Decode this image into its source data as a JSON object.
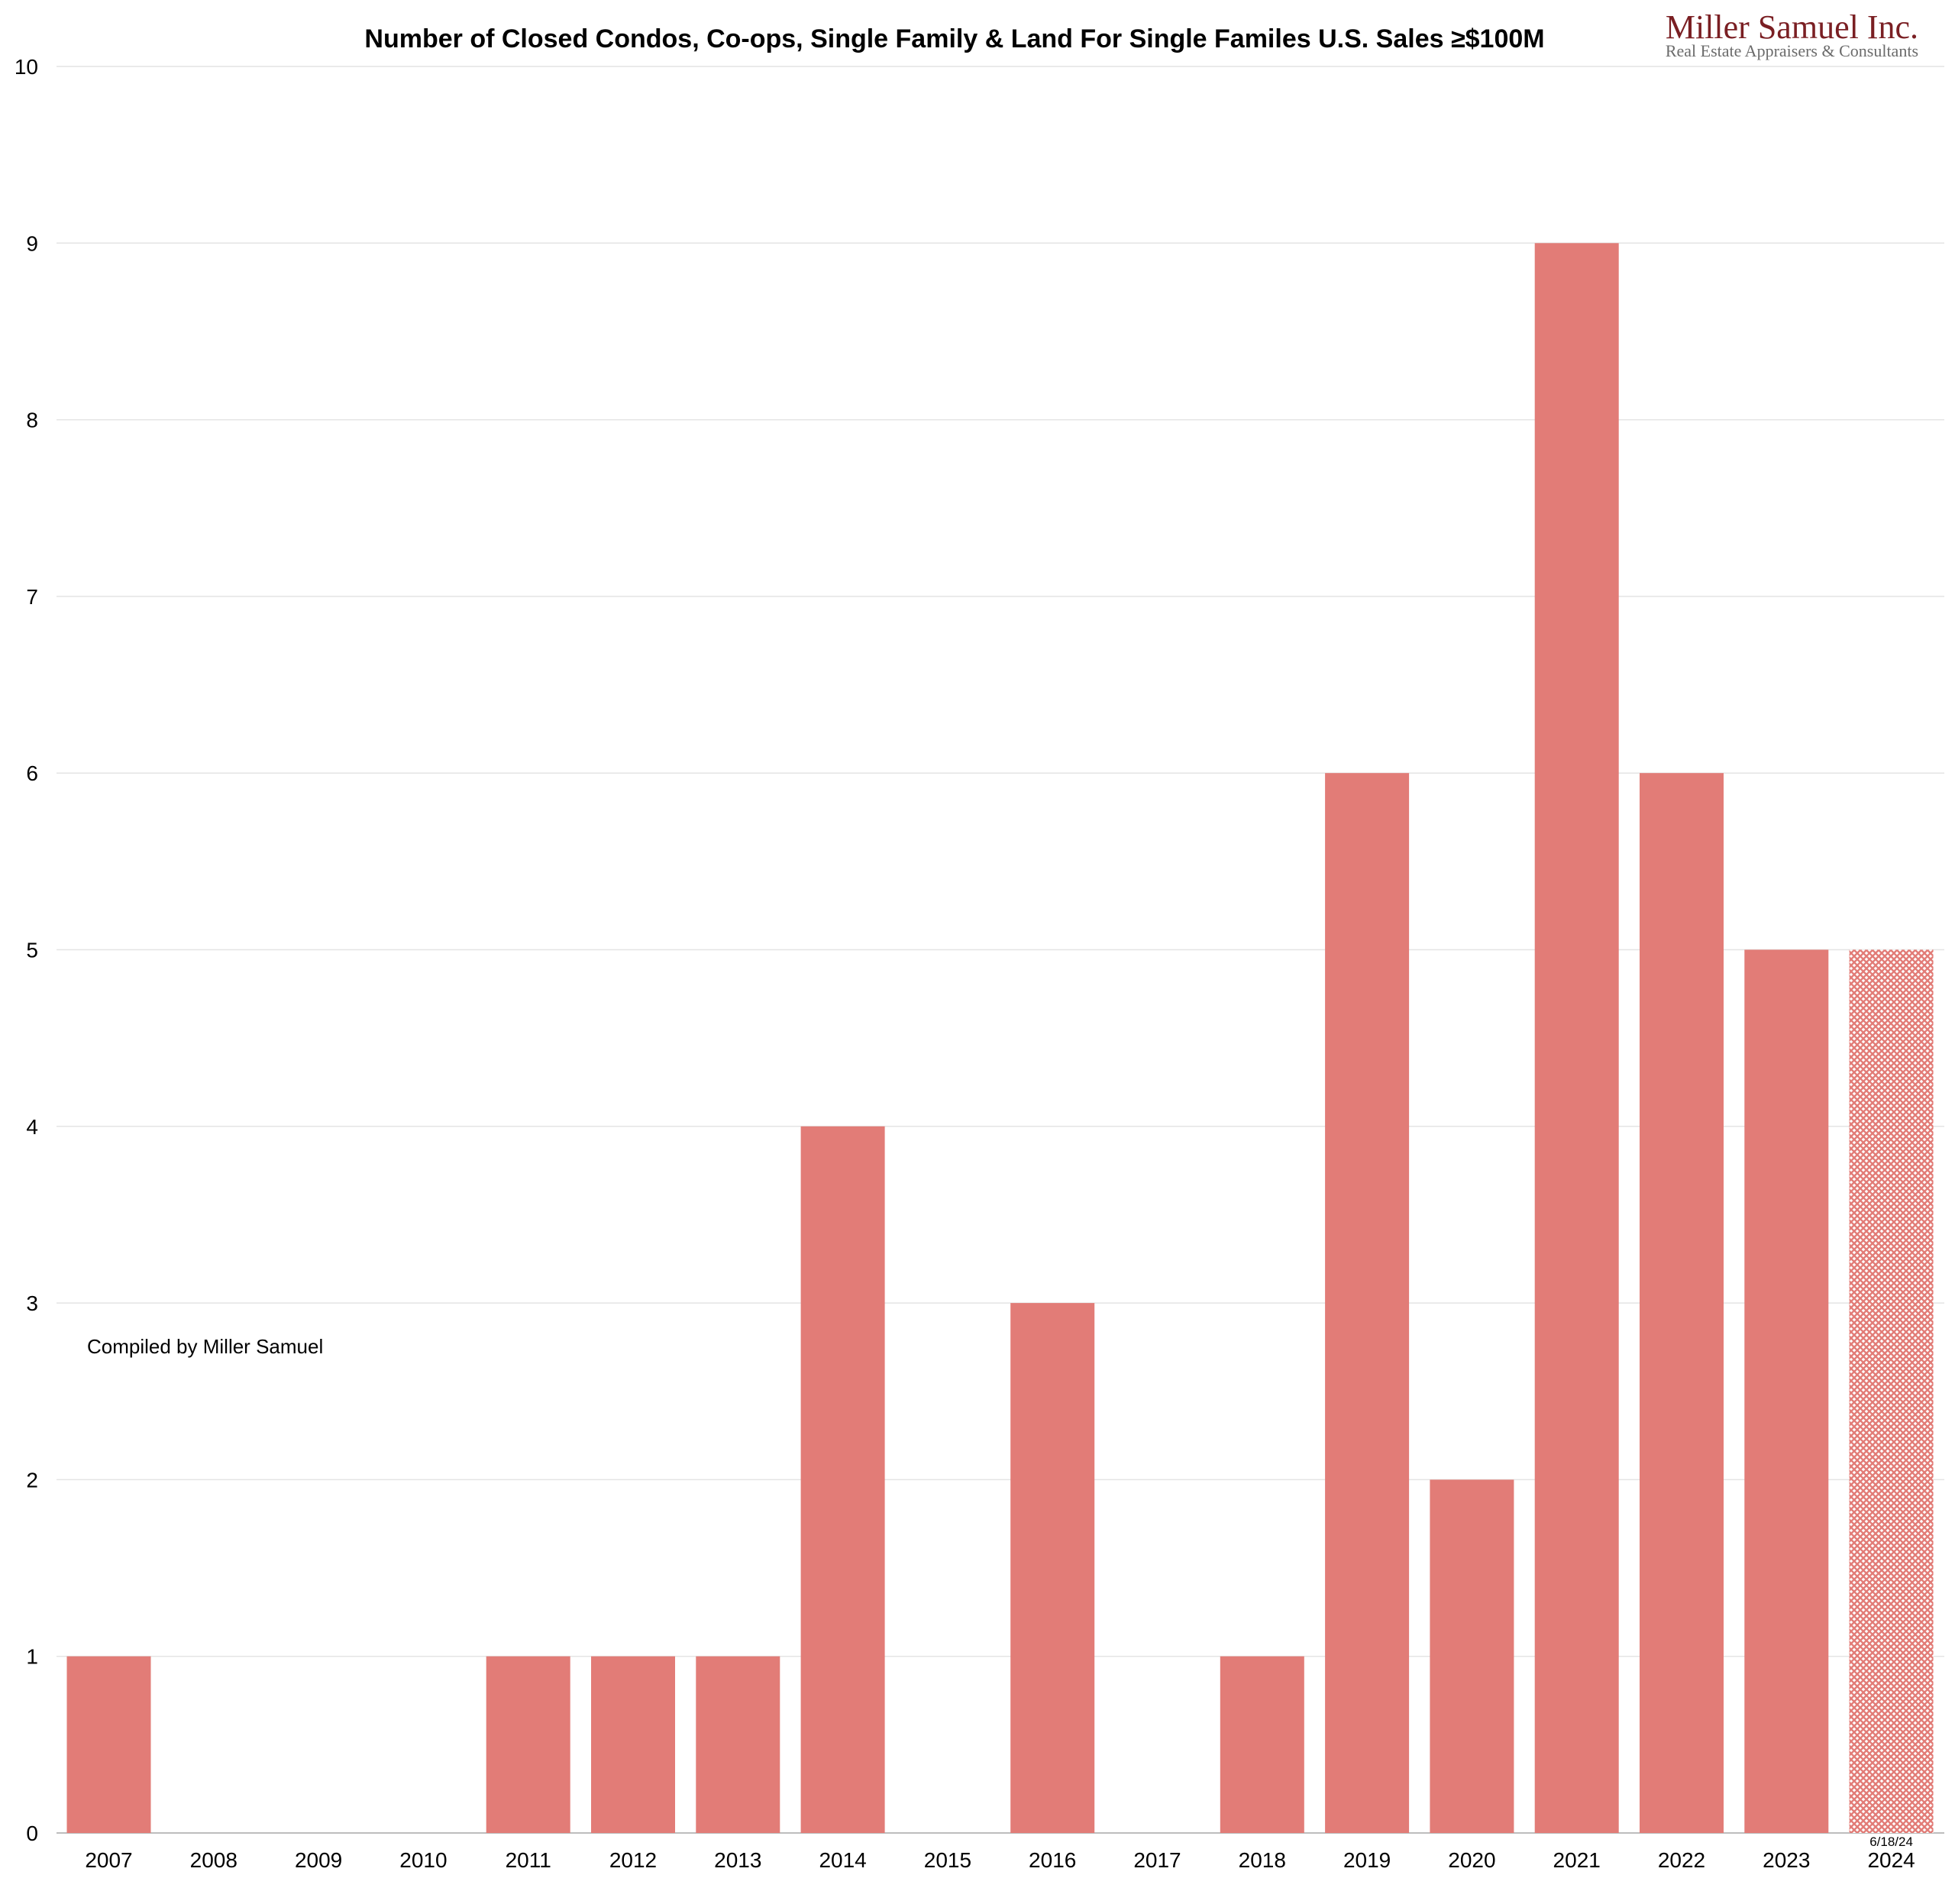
{
  "chart_data": {
    "type": "bar",
    "title": "Number of Closed Condos, Co-ops, Single Family & Land For Single Familes U.S. Sales ≥$100M",
    "xlabel": "",
    "ylabel": "",
    "ylim": [
      0,
      10
    ],
    "yticks": [
      "0",
      "1",
      "2",
      "3",
      "4",
      "5",
      "6",
      "7",
      "8",
      "9",
      "10"
    ],
    "categories": [
      "2007",
      "2008",
      "2009",
      "2010",
      "2011",
      "2012",
      "2013",
      "2014",
      "2015",
      "2016",
      "2017",
      "2018",
      "2019",
      "2020",
      "2021",
      "2022",
      "2023",
      "2024"
    ],
    "values": [
      1,
      0,
      0,
      0,
      1,
      1,
      1,
      4,
      0,
      3,
      0,
      1,
      6,
      2,
      9,
      6,
      5,
      5
    ],
    "partial_year": {
      "category": "2024",
      "label": "6/18/24",
      "style": "hatched"
    },
    "bar_color": "#e27c77",
    "grid": true,
    "annotation": "Compiled by Miller Samuel"
  },
  "branding": {
    "name": "Miller Samuel Inc.",
    "tagline": "Real Estate Appraisers & Consultants",
    "color": "#7a1f23"
  }
}
